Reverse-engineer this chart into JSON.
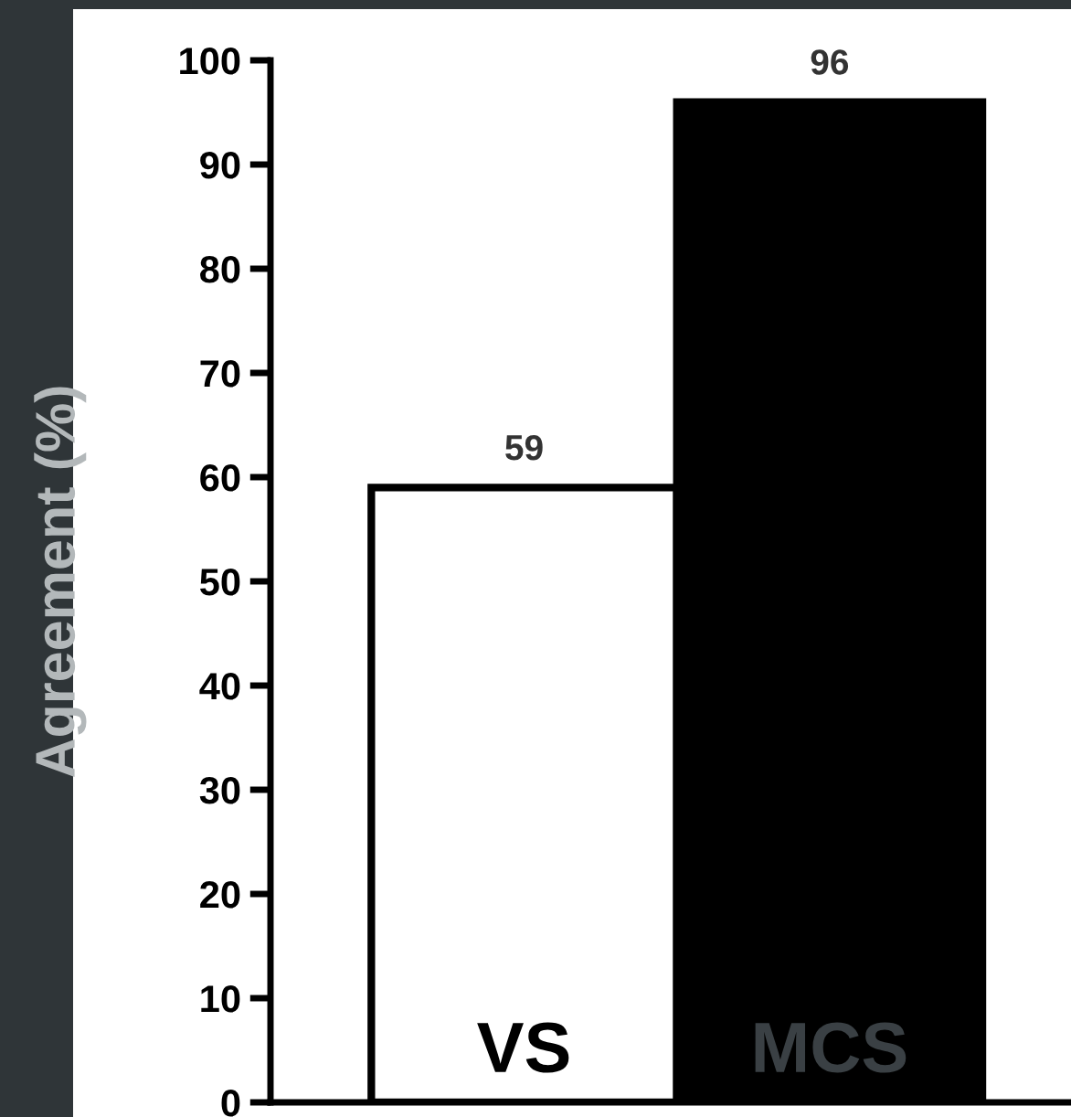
{
  "chart_data": {
    "type": "bar",
    "ylabel": "Agreement (%)",
    "categories": [
      "VS",
      "MCS"
    ],
    "values": [
      59,
      96
    ],
    "colors": [
      "#ffffff",
      "#000000"
    ],
    "ylim": [
      0,
      100
    ],
    "yticks": [
      0,
      10,
      20,
      30,
      40,
      50,
      60,
      70,
      80,
      90,
      100
    ],
    "data_labels": true,
    "grid": false,
    "legend": false
  }
}
